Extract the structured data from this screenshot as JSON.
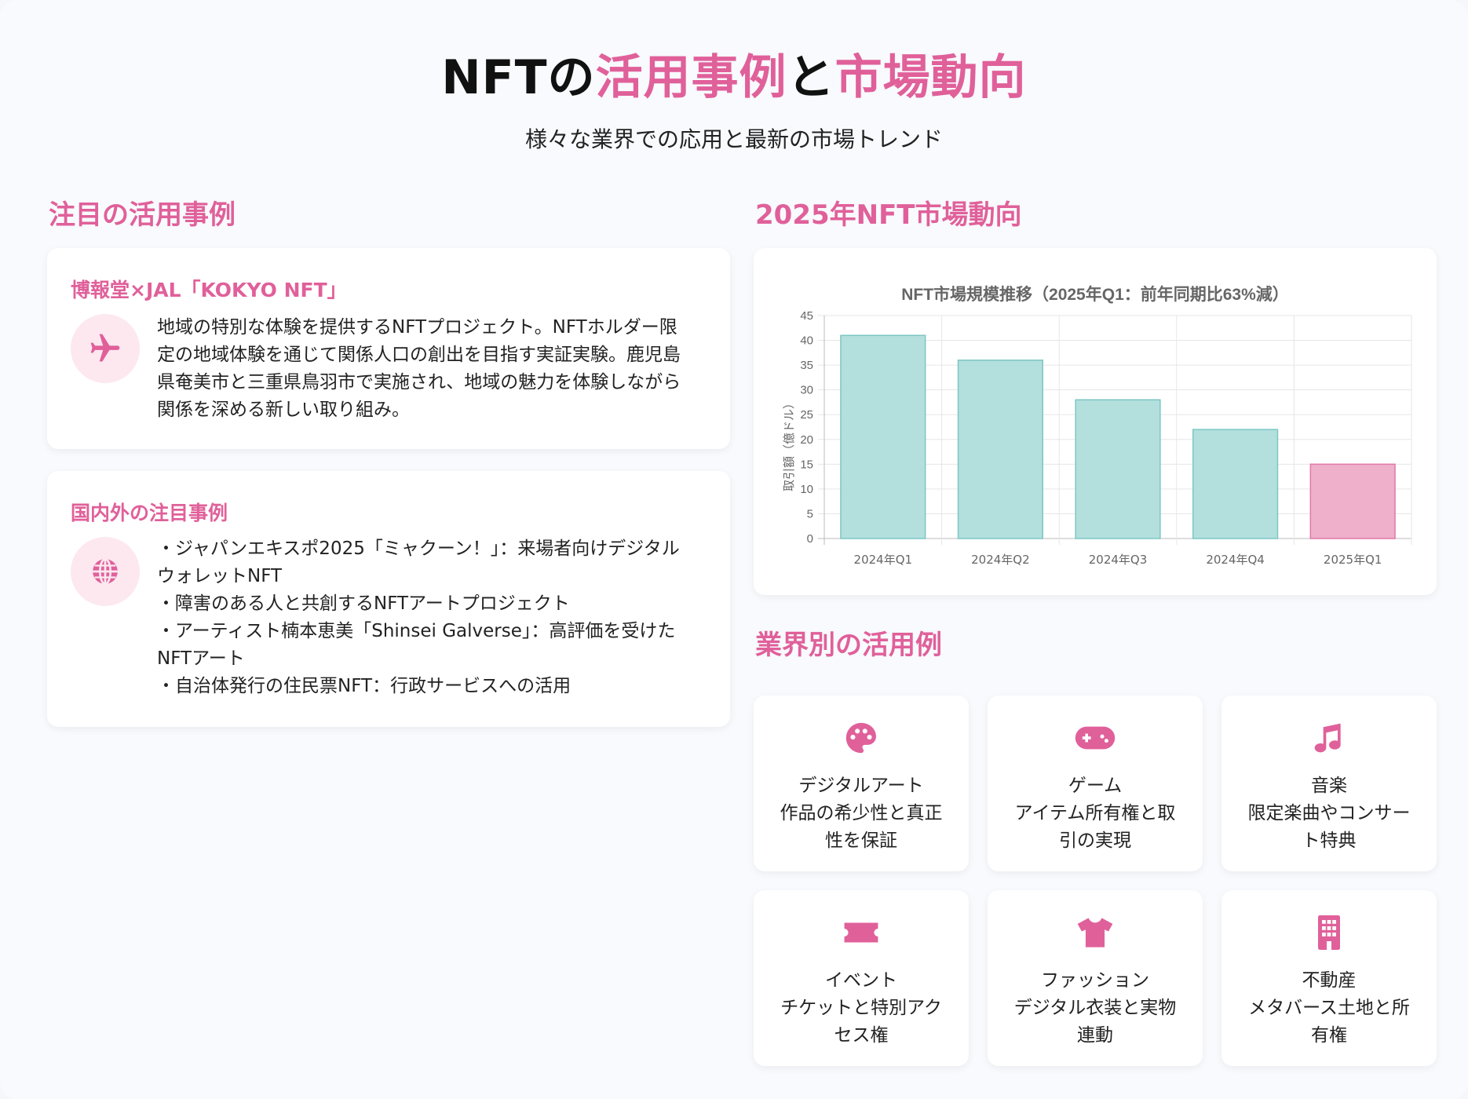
{
  "header": {
    "title_part1": "NFTの",
    "title_part2": "活用事例",
    "title_part3": "と",
    "title_part4": "市場動向",
    "subtitle": "様々な業界での応用と最新の市場トレンド"
  },
  "left": {
    "heading": "注目の活用事例",
    "cards": [
      {
        "title": "博報堂×JAL「KOKYO NFT」",
        "icon": "airplane-icon",
        "lines": [
          "地域の特別な体験を提供するNFTプロジェクト。NFTホルダー限",
          "定の地域体験を通じて関係人口の創出を目指す実証実験。鹿児島",
          "県奄美市と三重県鳥羽市で実施され、地域の魅力を体験しながら",
          "関係を深める新しい取り組み。"
        ]
      },
      {
        "title": "国内外の注目事例",
        "icon": "globe-icon",
        "lines": [
          "・ジャパンエキスポ2025「ミャクーン！」：来場者向けデジタル",
          "ウォレットNFT",
          "・障害のある人と共創するNFTアートプロジェクト",
          "・アーティスト楠本恵美「Shinsei Galverse」：高評価を受けた",
          "NFTアート",
          "・自治体発行の住民票NFT：行政サービスへの活用"
        ]
      }
    ]
  },
  "right": {
    "market_heading": "2025年NFT市場動向",
    "industry_heading": "業界別の活用例",
    "tiles": [
      {
        "icon": "palette-icon",
        "lines": [
          "デジタルアート",
          "作品の希少性と真正",
          "性を保証"
        ]
      },
      {
        "icon": "gamepad-icon",
        "lines": [
          "ゲーム",
          "アイテム所有権と取",
          "引の実現"
        ]
      },
      {
        "icon": "music-note-icon",
        "lines": [
          "音楽",
          "限定楽曲やコンサー",
          "ト特典"
        ]
      },
      {
        "icon": "ticket-icon",
        "lines": [
          "イベント",
          "チケットと特別アク",
          "セス権"
        ]
      },
      {
        "icon": "tshirt-icon",
        "lines": [
          "ファッション",
          "デジタル衣装と実物",
          "連動"
        ]
      },
      {
        "icon": "building-icon",
        "lines": [
          "不動産",
          "メタバース土地と所",
          "有権"
        ]
      }
    ]
  },
  "colors": {
    "accent": "#e0609a",
    "bar_teal": "#b3dfdd",
    "bar_teal_stroke": "#7cc7c3",
    "bar_pink": "#eeb0cb",
    "bar_pink_stroke": "#e079a8"
  },
  "chart_data": {
    "type": "bar",
    "title": "NFT市場規模推移（2025年Q1：前年同期比63%減）",
    "ylabel": "取引額（億ドル）",
    "xlabel": "",
    "categories": [
      "2024年Q1",
      "2024年Q2",
      "2024年Q3",
      "2024年Q4",
      "2025年Q1"
    ],
    "values": [
      41,
      36,
      28,
      22,
      15
    ],
    "ylim": [
      0,
      45
    ],
    "yticks": [
      0,
      5,
      10,
      15,
      20,
      25,
      30,
      35,
      40,
      45
    ],
    "grid": true,
    "highlight_index": 4
  }
}
